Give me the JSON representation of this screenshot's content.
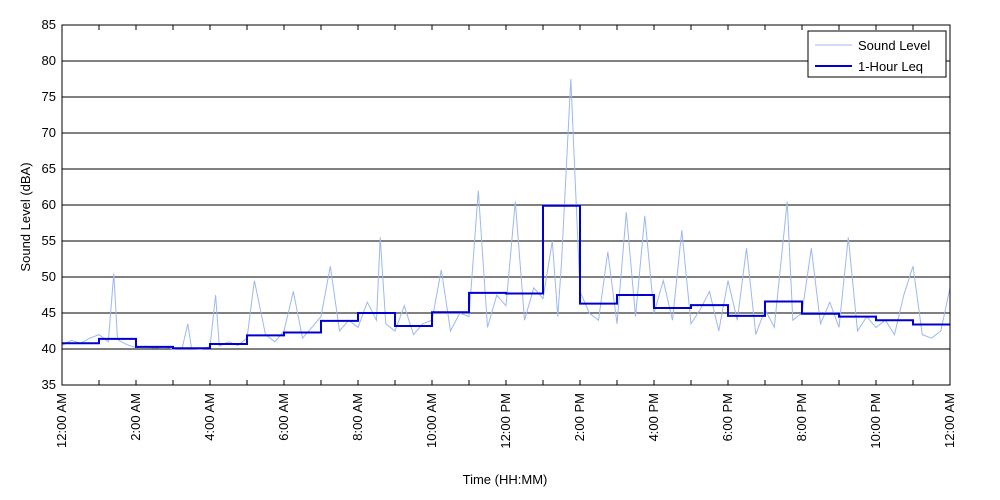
{
  "chart_data": {
    "type": "line",
    "title": "",
    "xlabel": "Time (HH:MM)",
    "ylabel": "Sound Level (dBA)",
    "ylim": [
      35,
      85
    ],
    "yticks": [
      35,
      40,
      45,
      50,
      55,
      60,
      65,
      70,
      75,
      80,
      85
    ],
    "xlim_hours": [
      0,
      24
    ],
    "xtick_labels": [
      "12:00 AM",
      "2:00 AM",
      "4:00 AM",
      "6:00 AM",
      "8:00 AM",
      "10:00 AM",
      "12:00 PM",
      "2:00 PM",
      "4:00 PM",
      "6:00 PM",
      "8:00 PM",
      "10:00 PM",
      "12:00 AM"
    ],
    "grid": "horizontal",
    "legend_position": "top-right",
    "series": [
      {
        "name": "Sound Level",
        "color": "#9db8f0",
        "x_hours": [
          0.0,
          0.25,
          0.5,
          0.75,
          1.0,
          1.25,
          1.4,
          1.5,
          1.75,
          2.0,
          2.25,
          2.5,
          2.75,
          3.0,
          3.25,
          3.4,
          3.5,
          3.75,
          4.0,
          4.15,
          4.25,
          4.5,
          4.75,
          5.0,
          5.2,
          5.5,
          5.75,
          6.0,
          6.25,
          6.5,
          6.75,
          7.0,
          7.25,
          7.5,
          7.75,
          8.0,
          8.25,
          8.5,
          8.6,
          8.75,
          9.0,
          9.25,
          9.5,
          9.75,
          10.0,
          10.25,
          10.5,
          10.75,
          11.0,
          11.25,
          11.5,
          11.75,
          12.0,
          12.25,
          12.5,
          12.75,
          13.0,
          13.25,
          13.4,
          13.5,
          13.75,
          14.0,
          14.25,
          14.5,
          14.75,
          15.0,
          15.25,
          15.5,
          15.75,
          16.0,
          16.25,
          16.5,
          16.75,
          17.0,
          17.25,
          17.5,
          17.75,
          18.0,
          18.25,
          18.5,
          18.75,
          19.0,
          19.25,
          19.5,
          19.6,
          19.75,
          20.0,
          20.25,
          20.5,
          20.75,
          21.0,
          21.25,
          21.5,
          21.75,
          22.0,
          22.25,
          22.5,
          22.75,
          23.0,
          23.25,
          23.5,
          23.75,
          24.0
        ],
        "values": [
          40.5,
          41.2,
          40.8,
          41.5,
          42.0,
          41.0,
          50.5,
          41.3,
          40.6,
          40.2,
          40.4,
          40.1,
          40.3,
          40.0,
          40.2,
          43.5,
          40.1,
          40.0,
          40.3,
          47.5,
          40.4,
          41.0,
          40.5,
          41.5,
          49.5,
          42.0,
          41.0,
          42.5,
          48.0,
          41.5,
          43.0,
          44.5,
          51.5,
          42.5,
          44.0,
          43.0,
          46.5,
          44.0,
          55.5,
          43.5,
          42.5,
          46.0,
          42.0,
          43.5,
          44.0,
          51.0,
          42.5,
          45.0,
          44.5,
          62.0,
          43.0,
          47.5,
          46.0,
          60.5,
          44.0,
          48.5,
          47.0,
          55.0,
          44.5,
          52.0,
          77.5,
          48.0,
          45.0,
          44.0,
          53.5,
          43.5,
          59.0,
          44.5,
          58.5,
          45.0,
          49.5,
          44.0,
          56.5,
          43.5,
          45.5,
          48.0,
          42.5,
          49.5,
          44.0,
          54.0,
          42.0,
          45.5,
          43.0,
          55.5,
          60.5,
          44.0,
          45.0,
          54.0,
          43.5,
          46.5,
          43.0,
          55.5,
          42.5,
          44.5,
          43.0,
          44.0,
          42.0,
          47.5,
          51.5,
          42.0,
          41.5,
          42.5,
          48.5
        ]
      },
      {
        "name": "1-Hour Leq",
        "color": "#0000d0",
        "hour_values": [
          40.8,
          41.4,
          40.3,
          40.1,
          40.7,
          41.9,
          42.3,
          43.9,
          45.0,
          43.2,
          45.1,
          47.8,
          47.7,
          59.9,
          46.3,
          47.5,
          45.7,
          46.1,
          44.6,
          46.6,
          44.9,
          44.5,
          44.0,
          43.4
        ]
      }
    ]
  }
}
